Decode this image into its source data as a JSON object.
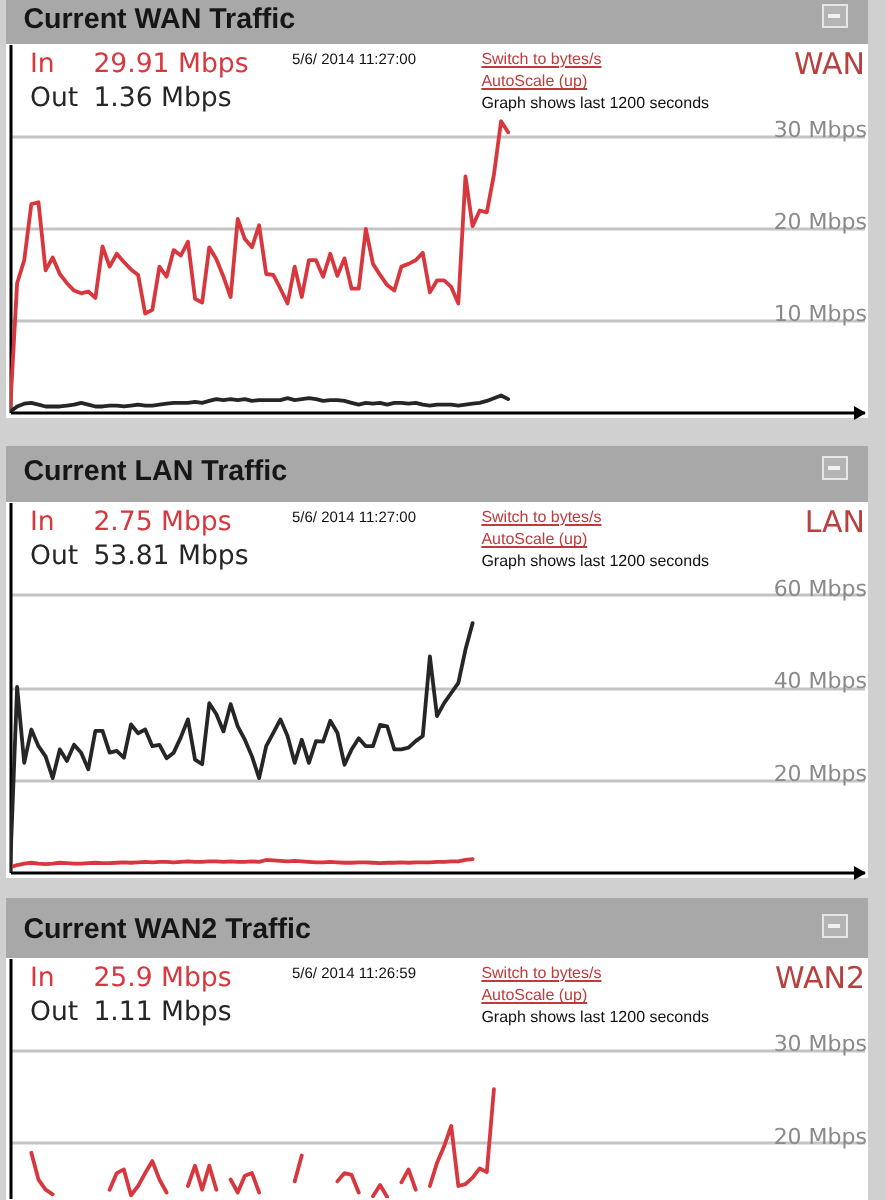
{
  "chart_data": [
    {
      "type": "line",
      "title": "Current WAN Traffic",
      "categories": [
        null,
        null,
        null,
        null,
        null,
        null,
        null,
        null,
        null,
        null,
        null,
        null,
        null,
        null,
        null,
        null,
        null,
        null,
        null,
        null,
        null,
        null,
        null,
        null,
        null,
        null,
        null,
        null,
        null,
        null,
        null,
        null,
        null,
        null,
        null,
        null,
        null,
        null,
        null,
        null,
        null,
        null,
        null,
        null,
        null,
        null,
        null,
        null,
        null,
        null,
        null,
        null,
        null,
        null,
        null,
        null,
        null,
        null,
        null,
        null,
        null,
        null,
        null,
        null,
        null,
        null,
        null,
        null,
        null,
        null,
        null,
        null,
        null,
        null,
        null,
        null,
        null,
        null,
        null,
        null,
        null,
        null,
        null,
        null,
        null,
        null,
        null,
        null,
        null,
        null,
        null,
        null,
        null,
        null,
        null,
        null,
        null,
        null,
        null,
        null,
        null,
        null,
        null,
        null,
        null,
        null,
        null,
        null,
        null,
        null,
        null,
        null,
        null,
        null,
        null,
        null,
        null,
        null,
        null,
        null,
        null
      ],
      "series": [
        {
          "name": "In",
          "color": "#d7373d",
          "values": [
            0,
            14,
            16.5,
            22.6,
            22.8,
            15.4,
            16.8,
            15,
            14,
            13.2,
            12.9,
            13.1,
            12.4,
            18,
            15.8,
            17.2,
            16.3,
            15.5,
            14.9,
            10.7,
            11.1,
            15.8,
            14.7,
            17.6,
            17,
            18.5,
            12.3,
            11.9,
            17.9,
            16.6,
            14.7,
            12.5,
            21,
            18.8,
            17.9,
            20.3,
            15,
            14.9,
            13.4,
            11.8,
            15.8,
            12.5,
            16.5,
            16.5,
            14.7,
            17.2,
            14.8,
            16.7,
            13.4,
            13.4,
            19.9,
            16.1,
            14.9,
            13.8,
            13.2,
            15.8,
            16.1,
            16.5,
            17.3,
            13,
            14.3,
            14.3,
            13.6,
            11.8,
            25.6,
            20.2,
            21.9,
            21.7,
            25.8,
            31.6,
            30.4,
            null,
            null,
            null,
            null,
            null,
            null,
            null,
            null,
            null,
            null,
            null,
            null,
            null,
            null,
            null,
            null,
            null,
            null,
            null,
            null,
            null,
            null,
            null,
            null,
            null,
            null,
            null,
            null,
            null,
            null,
            null,
            null,
            null,
            null,
            null,
            null,
            null,
            null,
            null,
            null,
            null,
            null,
            null,
            null,
            null,
            null,
            null,
            null,
            null,
            null
          ]
        },
        {
          "name": "Out",
          "color": "#262626",
          "values": [
            0,
            0.6,
            0.9,
            1.0,
            0.8,
            0.6,
            0.6,
            0.6,
            0.7,
            0.8,
            1.0,
            0.8,
            0.6,
            0.6,
            0.7,
            0.7,
            0.6,
            0.7,
            0.8,
            0.7,
            0.7,
            0.8,
            0.9,
            1.0,
            1.0,
            1.0,
            1.1,
            1.0,
            1.2,
            1.4,
            1.3,
            1.4,
            1.3,
            1.4,
            1.2,
            1.3,
            1.3,
            1.3,
            1.3,
            1.5,
            1.3,
            1.4,
            1.5,
            1.4,
            1.2,
            1.3,
            1.3,
            1.2,
            1.0,
            0.8,
            1.0,
            0.9,
            1.0,
            0.8,
            1.0,
            1.0,
            0.9,
            1.0,
            0.8,
            0.7,
            0.8,
            0.8,
            0.8,
            0.7,
            0.8,
            0.9,
            1.0,
            1.2,
            1.5,
            1.8,
            1.4,
            null,
            null,
            null,
            null,
            null,
            null,
            null,
            null,
            null,
            null,
            null,
            null,
            null,
            null,
            null,
            null,
            null,
            null,
            null,
            null,
            null,
            null,
            null,
            null,
            null,
            null,
            null,
            null,
            null,
            null,
            null,
            null,
            null,
            null,
            null,
            null,
            null,
            null,
            null,
            null,
            null,
            null,
            null,
            null,
            null,
            null,
            null,
            null,
            null,
            null
          ]
        }
      ],
      "ylim": [
        0,
        40
      ],
      "yticks": [
        {
          "value": 10,
          "label": "10 Mbps"
        },
        {
          "value": 20,
          "label": "20 Mbps"
        },
        {
          "value": 30,
          "label": "30 Mbps"
        }
      ],
      "grid": "y",
      "legend": "top left",
      "annotations": [
        "29.91 Mbps",
        "1.36 Mbps",
        "5/6/ 2014 11:27:00",
        "Switch to bytes/s",
        "AutoScale (up)",
        "Graph shows last 1200 seconds",
        "WAN"
      ]
    },
    {
      "type": "line",
      "title": "Current LAN Traffic",
      "categories": [
        null,
        null,
        null,
        null,
        null,
        null,
        null,
        null,
        null,
        null,
        null,
        null,
        null,
        null,
        null,
        null,
        null,
        null,
        null,
        null,
        null,
        null,
        null,
        null,
        null,
        null,
        null,
        null,
        null,
        null,
        null,
        null,
        null,
        null,
        null,
        null,
        null,
        null,
        null,
        null,
        null,
        null,
        null,
        null,
        null,
        null,
        null,
        null,
        null,
        null,
        null,
        null,
        null,
        null,
        null,
        null,
        null,
        null,
        null,
        null,
        null,
        null,
        null,
        null,
        null,
        null,
        null,
        null,
        null,
        null,
        null,
        null,
        null,
        null,
        null,
        null,
        null,
        null,
        null,
        null,
        null,
        null,
        null,
        null,
        null,
        null,
        null,
        null,
        null,
        null,
        null,
        null,
        null,
        null,
        null,
        null,
        null,
        null,
        null,
        null,
        null,
        null,
        null,
        null,
        null,
        null,
        null,
        null,
        null,
        null,
        null,
        null,
        null,
        null,
        null,
        null,
        null,
        null,
        null,
        null,
        null
      ],
      "series": [
        {
          "name": "In",
          "color": "#d7373d",
          "values": [
            1.0,
            1.5,
            1.8,
            2.0,
            1.8,
            1.7,
            1.8,
            2.0,
            1.9,
            1.8,
            1.8,
            1.9,
            2.0,
            1.9,
            1.9,
            2.0,
            2.1,
            2.0,
            2.1,
            2.2,
            2.1,
            2.2,
            2.2,
            2.1,
            2.2,
            2.3,
            2.2,
            2.2,
            2.3,
            2.3,
            2.2,
            2.3,
            2.2,
            2.2,
            2.3,
            2.2,
            2.6,
            2.5,
            2.4,
            2.3,
            2.4,
            2.3,
            2.2,
            2.1,
            2.1,
            2.2,
            2.1,
            2.0,
            2.0,
            2.1,
            2.1,
            2.0,
            1.9,
            2.0,
            2.0,
            2.1,
            2.0,
            2.1,
            2.1,
            2.1,
            2.2,
            2.2,
            2.3,
            2.3,
            2.6,
            2.8,
            null,
            null,
            null,
            null,
            null,
            null,
            null,
            null,
            null,
            null,
            null,
            null,
            null,
            null,
            null,
            null,
            null,
            null,
            null,
            null,
            null,
            null,
            null,
            null,
            null,
            null,
            null,
            null,
            null,
            null,
            null,
            null,
            null,
            null,
            null,
            null,
            null,
            null,
            null,
            null,
            null,
            null,
            null,
            null,
            null,
            null,
            null,
            null,
            null,
            null,
            null,
            null,
            null,
            null,
            null
          ]
        },
        {
          "name": "Out",
          "color": "#262626",
          "values": [
            0,
            40,
            23.6,
            30.8,
            27.2,
            25,
            20.3,
            26.5,
            24,
            27.5,
            25.8,
            22.2,
            30.5,
            30.5,
            25.8,
            26.2,
            24.7,
            31.9,
            30,
            30.8,
            27.2,
            27.5,
            24.6,
            25.8,
            29.1,
            33,
            24.3,
            23.3,
            36.5,
            34.1,
            30.4,
            36.3,
            31.5,
            28.6,
            25,
            20.3,
            27.2,
            30.1,
            33,
            29.4,
            23.6,
            28.6,
            23.6,
            28.3,
            28.2,
            32.7,
            30.1,
            23.2,
            26.5,
            28.9,
            27.2,
            27.2,
            31.8,
            31.5,
            26.5,
            26.5,
            26.9,
            28.3,
            29.4,
            46.6,
            33.7,
            36.5,
            38.7,
            40.9,
            48.1,
            53.8,
            null,
            null,
            null,
            null,
            null,
            null,
            null,
            null,
            null,
            null,
            null,
            null,
            null,
            null,
            null,
            null,
            null,
            null,
            null,
            null,
            null,
            null,
            null,
            null,
            null,
            null,
            null,
            null,
            null,
            null,
            null,
            null,
            null,
            null,
            null,
            null,
            null,
            null,
            null,
            null,
            null,
            null,
            null,
            null,
            null,
            null,
            null,
            null,
            null,
            null,
            null,
            null,
            null,
            null,
            null
          ]
        }
      ],
      "ylim": [
        0,
        80
      ],
      "yticks": [
        {
          "value": 20,
          "label": "20 Mbps"
        },
        {
          "value": 40,
          "label": "40 Mbps"
        },
        {
          "value": 60,
          "label": "60 Mbps"
        }
      ],
      "grid": "y",
      "legend": "top left",
      "annotations": [
        "2.75 Mbps",
        "53.81 Mbps",
        "5/6/ 2014 11:27:00",
        "Switch to bytes/s",
        "AutoScale (up)",
        "Graph shows last 1200 seconds",
        "LAN"
      ]
    },
    {
      "type": "line",
      "title": "Current WAN2 Traffic",
      "categories": [
        null,
        null,
        null,
        null,
        null,
        null,
        null,
        null,
        null,
        null,
        null,
        null,
        null,
        null,
        null,
        null,
        null,
        null,
        null,
        null,
        null,
        null,
        null,
        null,
        null,
        null,
        null,
        null,
        null,
        null,
        null,
        null,
        null,
        null,
        null,
        null,
        null,
        null,
        null,
        null,
        null,
        null,
        null,
        null,
        null,
        null,
        null,
        null,
        null,
        null,
        null,
        null,
        null,
        null,
        null,
        null,
        null,
        null,
        null,
        null,
        null,
        null,
        null,
        null,
        null,
        null,
        null,
        null,
        null,
        null,
        null,
        null,
        null,
        null,
        null,
        null,
        null,
        null,
        null,
        null,
        null,
        null,
        null,
        null,
        null,
        null,
        null,
        null,
        null,
        null,
        null,
        null,
        null,
        null,
        null,
        null,
        null,
        null,
        null,
        null,
        null,
        null,
        null,
        null,
        null,
        null,
        null,
        null,
        null,
        null,
        null,
        null,
        null,
        null,
        null,
        null,
        null,
        null,
        null,
        null,
        null
      ],
      "series": [
        {
          "name": "In",
          "color": "#d7373d",
          "values": [
            null,
            null,
            null,
            18.9,
            16.0,
            14.9,
            14.4,
            null,
            null,
            null,
            null,
            null,
            null,
            null,
            14.9,
            16.7,
            17.1,
            14.3,
            15.3,
            16.7,
            18.0,
            16.0,
            14.6,
            null,
            null,
            15.3,
            17.5,
            14.9,
            17.5,
            14.9,
            null,
            16.0,
            14.6,
            16.4,
            16.7,
            14.6,
            null,
            null,
            null,
            null,
            15.8,
            18.6,
            null,
            null,
            null,
            null,
            15.8,
            16.7,
            16.5,
            14.6,
            null,
            14.2,
            15.4,
            14.1,
            null,
            15.7,
            17.1,
            14.9,
            null,
            15.3,
            17.8,
            19.6,
            21.8,
            15.3,
            15.5,
            16.2,
            17.2,
            16.8,
            25.8,
            null,
            null,
            null,
            null,
            null,
            null,
            null,
            null,
            null,
            null,
            null,
            null,
            null,
            null,
            null,
            null,
            null,
            null,
            null,
            null,
            null,
            null,
            null,
            null,
            null,
            null,
            null,
            null,
            null,
            null,
            null,
            null,
            null,
            null,
            null,
            null,
            null,
            null,
            null,
            null,
            null,
            null,
            null,
            null,
            null,
            null,
            null,
            null,
            null,
            null,
            null,
            null
          ]
        },
        {
          "name": "Out",
          "color": "#262626",
          "values": [
            null,
            null,
            null,
            null,
            null,
            null,
            null,
            null,
            null,
            null,
            null,
            null,
            null,
            null,
            null,
            null,
            null,
            null,
            null,
            null,
            null,
            null,
            null,
            null,
            null,
            null,
            null,
            null,
            null,
            null,
            null,
            null,
            null,
            null,
            null,
            null,
            null,
            null,
            null,
            null,
            null,
            null,
            null,
            null,
            null,
            null,
            null,
            null,
            null,
            null,
            null,
            null,
            null,
            null,
            null,
            null,
            null,
            null,
            null,
            null,
            null,
            null,
            null,
            null,
            null,
            null,
            null,
            null,
            null,
            null,
            null,
            null,
            null,
            null,
            null,
            null,
            null,
            null,
            null,
            null,
            null,
            null,
            null,
            null,
            null,
            null,
            null,
            null,
            null,
            null,
            null,
            null,
            null,
            null,
            null,
            null,
            null,
            null,
            null,
            null,
            null,
            null,
            null,
            null,
            null,
            null,
            null,
            null,
            null,
            null,
            null,
            null,
            null,
            null,
            null,
            null,
            null,
            null,
            null,
            null,
            null
          ]
        }
      ],
      "ylim": [
        14,
        40
      ],
      "yticks": [
        {
          "value": 20,
          "label": "20 Mbps"
        },
        {
          "value": 30,
          "label": "30 Mbps"
        }
      ],
      "grid": "y",
      "legend": "top left",
      "annotations": [
        "25.9 Mbps",
        "1.11 Mbps",
        "5/6/ 2014 11:26:59",
        "Switch to bytes/s",
        "AutoScale (up)",
        "Graph shows last 1200 seconds",
        "WAN2"
      ]
    }
  ]
}
